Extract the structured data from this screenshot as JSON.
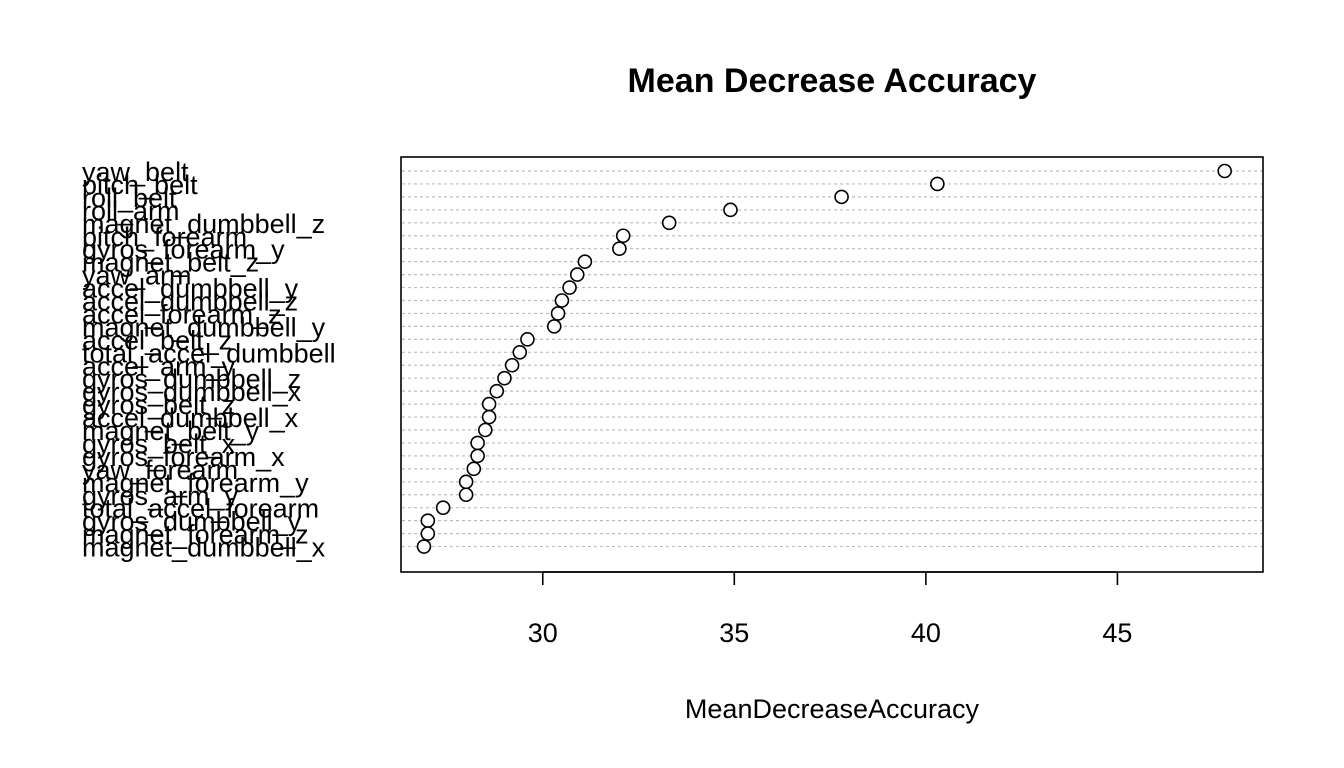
{
  "chart_data": {
    "type": "scatter",
    "title": "Mean Decrease Accuracy",
    "xlabel": "MeanDecreaseAccuracy",
    "ylabel": "",
    "xlim": [
      26.3,
      48.8
    ],
    "xticks": [
      30,
      35,
      40,
      45
    ],
    "grid": "dotted horizontal guide lines",
    "points": [
      {
        "label": "yaw_belt",
        "value": 47.8
      },
      {
        "label": "pitch_belt",
        "value": 40.3
      },
      {
        "label": "roll_belt",
        "value": 37.8
      },
      {
        "label": "roll_arm",
        "value": 34.9
      },
      {
        "label": "magnet_dumbbell_z",
        "value": 33.3
      },
      {
        "label": "pitch_forearm",
        "value": 32.1
      },
      {
        "label": "gyros_forearm_y",
        "value": 32.0
      },
      {
        "label": "magnet_belt_z",
        "value": 31.1
      },
      {
        "label": "yaw_arm",
        "value": 30.9
      },
      {
        "label": "accel_dumbbell_y",
        "value": 30.7
      },
      {
        "label": "accel_dumbbell_z",
        "value": 30.5
      },
      {
        "label": "accel_forearm_z",
        "value": 30.4
      },
      {
        "label": "magnet_dumbbell_y",
        "value": 30.3
      },
      {
        "label": "accel_belt_z",
        "value": 29.6
      },
      {
        "label": "total_accel_dumbbell",
        "value": 29.4
      },
      {
        "label": "accel_arm_y",
        "value": 29.2
      },
      {
        "label": "gyros_dumbbell_z",
        "value": 29.0
      },
      {
        "label": "gyros_dumbbell_x",
        "value": 28.8
      },
      {
        "label": "gyros_belt_z",
        "value": 28.6
      },
      {
        "label": "accel_dumbbell_x",
        "value": 28.6
      },
      {
        "label": "magnet_belt_y",
        "value": 28.5
      },
      {
        "label": "gyros_belt_x",
        "value": 28.3
      },
      {
        "label": "gyros_forearm_x",
        "value": 28.3
      },
      {
        "label": "yaw_forearm",
        "value": 28.2
      },
      {
        "label": "magnet_forearm_y",
        "value": 28.0
      },
      {
        "label": "gyros_arm_y",
        "value": 28.0
      },
      {
        "label": "total_accel_forearm",
        "value": 27.4
      },
      {
        "label": "gyros_dumbbell_y",
        "value": 27.0
      },
      {
        "label": "magnet_forearm_z",
        "value": 27.0
      },
      {
        "label": "magnet_dumbbell_x",
        "value": 26.9
      }
    ]
  }
}
